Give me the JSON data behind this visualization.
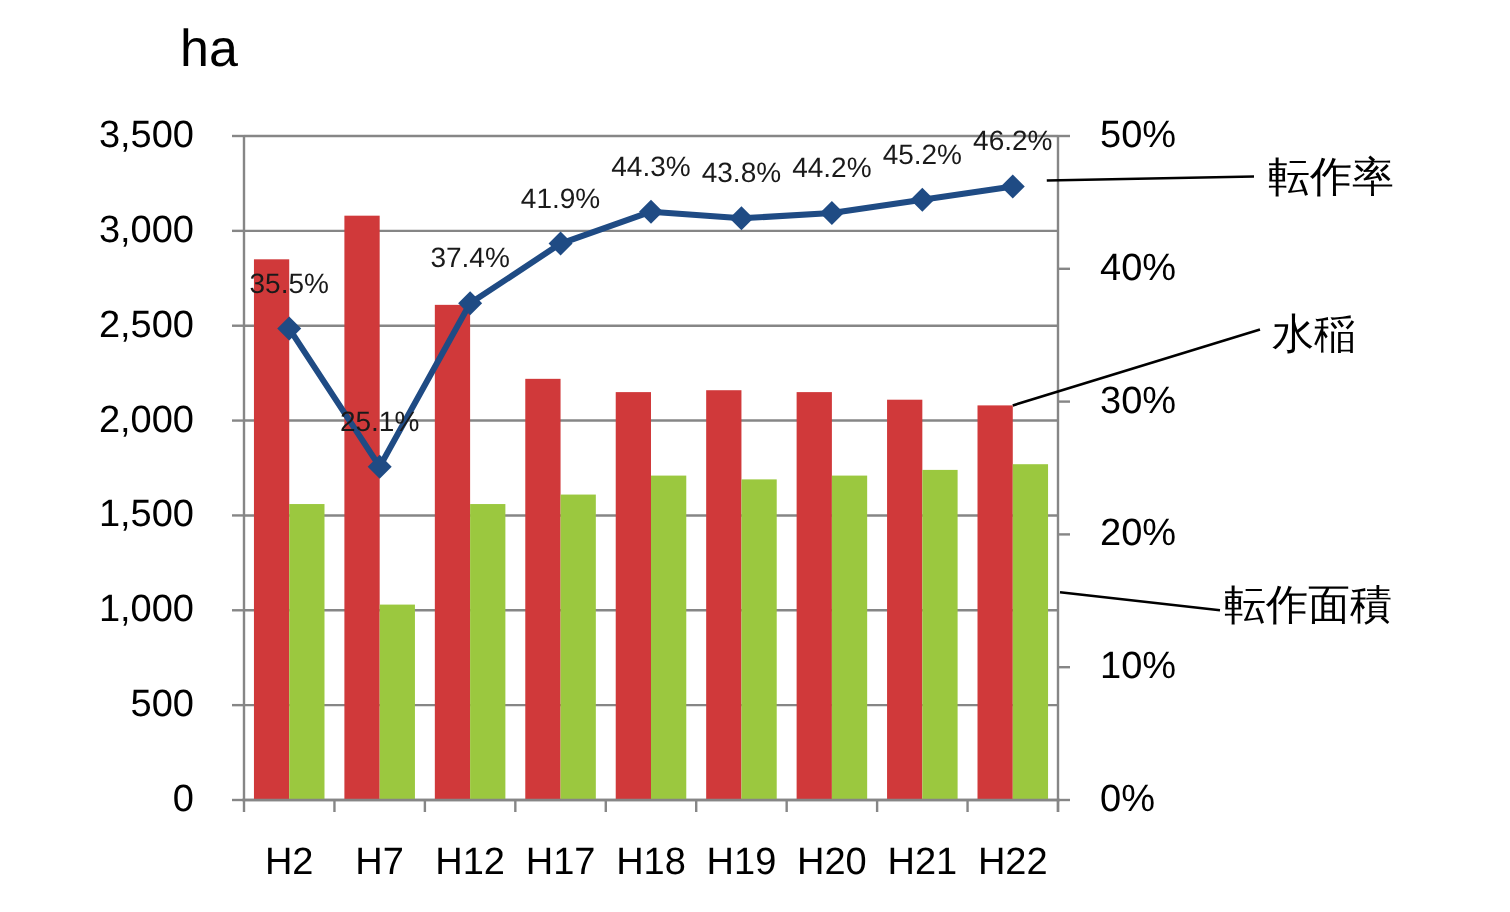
{
  "chart_data": {
    "type": "bar",
    "ylabel": "ha",
    "categories": [
      "H2",
      "H7",
      "H12",
      "H17",
      "H18",
      "H19",
      "H20",
      "H21",
      "H22"
    ],
    "series": [
      {
        "name": "水稲",
        "color": "#d0393a",
        "values": [
          2850,
          3080,
          2610,
          2220,
          2150,
          2160,
          2150,
          2110,
          2080
        ]
      },
      {
        "name": "転作面積",
        "color": "#9bc83f",
        "values": [
          1560,
          1030,
          1560,
          1610,
          1710,
          1690,
          1710,
          1740,
          1770
        ]
      },
      {
        "name": "転作率",
        "type": "line",
        "axis": "y2",
        "color": "#1f4b84",
        "values": [
          35.5,
          25.1,
          37.4,
          41.9,
          44.3,
          43.8,
          44.2,
          45.2,
          46.2
        ],
        "value_labels": [
          "35.5%",
          "25.1%",
          "37.4%",
          "41.9%",
          "44.3%",
          "43.8%",
          "44.2%",
          "45.2%",
          "46.2%"
        ]
      }
    ],
    "ylim": [
      0,
      3500
    ],
    "yticks": [
      0,
      500,
      {
        "value": 1000,
        "label": "1,000"
      },
      {
        "value": 1500,
        "label": "1,500"
      },
      {
        "value": 2000,
        "label": "2,000"
      },
      {
        "value": 2500,
        "label": "2,500"
      },
      {
        "value": 3000,
        "label": "3,000"
      },
      {
        "value": 3500,
        "label": "3,500"
      }
    ],
    "y2lim": [
      0,
      50
    ],
    "y2ticks": [
      {
        "value": 0,
        "label": "0%"
      },
      {
        "value": 10,
        "label": "10%"
      },
      {
        "value": 20,
        "label": "20%"
      },
      {
        "value": 30,
        "label": "30%"
      },
      {
        "value": 40,
        "label": "40%"
      },
      {
        "value": 50,
        "label": "50%"
      }
    ],
    "grid": "y",
    "legend": false,
    "marker": "diamond"
  }
}
